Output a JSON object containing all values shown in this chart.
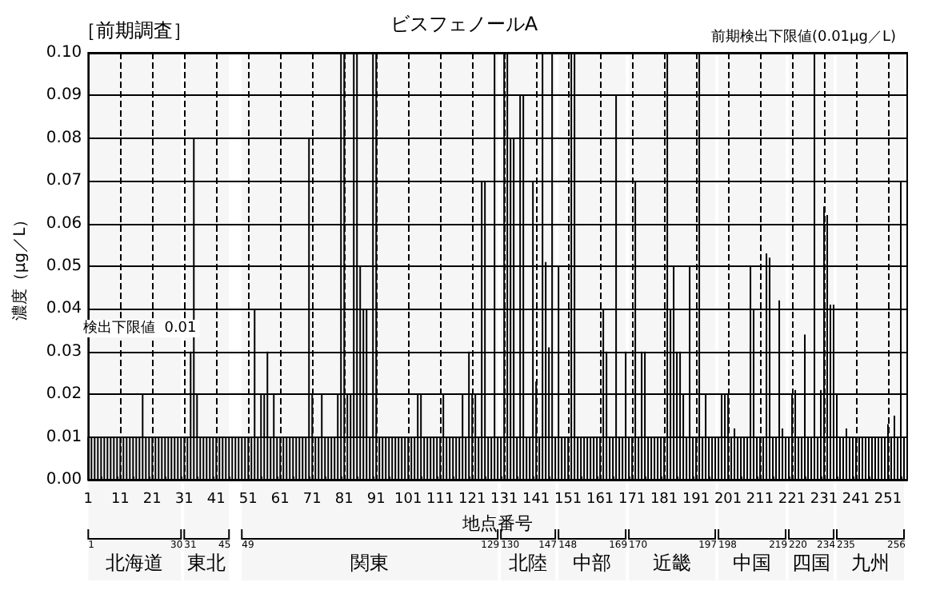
{
  "chart_data": {
    "type": "bar",
    "title": "ビスフェノールA",
    "xlabel": "地点番号",
    "ylabel": "濃度（μg／L）",
    "annotations": [
      "［前期調査］",
      "前期検出下限値(0.01μg／L)",
      "検出下限値  0.01",
      "1",
      "30",
      "31",
      "45",
      "49",
      "129",
      "130",
      "147",
      "148",
      "169",
      "170",
      "197",
      "198",
      "219",
      "220",
      "234",
      "235",
      "256"
    ],
    "color": "#000000",
    "x": [
      1,
      2,
      3,
      4,
      5,
      6,
      7,
      8,
      9,
      10,
      11,
      12,
      13,
      14,
      15,
      16,
      17,
      18,
      19,
      20,
      21,
      22,
      23,
      24,
      25,
      26,
      27,
      28,
      29,
      30,
      31,
      32,
      33,
      34,
      35,
      36,
      37,
      38,
      39,
      40,
      41,
      42,
      43,
      44,
      45,
      46,
      47,
      48,
      49,
      50,
      51,
      52,
      53,
      54,
      55,
      56,
      57,
      58,
      59,
      60,
      61,
      62,
      63,
      64,
      65,
      66,
      67,
      68,
      69,
      70,
      71,
      72,
      73,
      74,
      75,
      76,
      77,
      78,
      79,
      80,
      81,
      82,
      83,
      84,
      85,
      86,
      87,
      88,
      89,
      90,
      91,
      92,
      93,
      94,
      95,
      96,
      97,
      98,
      99,
      100,
      101,
      102,
      103,
      104,
      105,
      106,
      107,
      108,
      109,
      110,
      111,
      112,
      113,
      114,
      115,
      116,
      117,
      118,
      119,
      120,
      121,
      122,
      123,
      124,
      125,
      126,
      127,
      128,
      129,
      130,
      131,
      132,
      133,
      134,
      135,
      136,
      137,
      138,
      139,
      140,
      141,
      142,
      143,
      144,
      145,
      146,
      147,
      148,
      149,
      150,
      151,
      152,
      153,
      154,
      155,
      156,
      157,
      158,
      159,
      160,
      161,
      162,
      163,
      164,
      165,
      166,
      167,
      168,
      169,
      170,
      171,
      172,
      173,
      174,
      175,
      176,
      177,
      178,
      179,
      180,
      181,
      182,
      183,
      184,
      185,
      186,
      187,
      188,
      189,
      190,
      191,
      192,
      193,
      194,
      195,
      196,
      197,
      198,
      199,
      200,
      201,
      202,
      203,
      204,
      205,
      206,
      207,
      208,
      209,
      210,
      211,
      212,
      213,
      214,
      215,
      216,
      217,
      218,
      219,
      220,
      221,
      222,
      223,
      224,
      225,
      226,
      227,
      228,
      229,
      230,
      231,
      232,
      233,
      234,
      235,
      236,
      237,
      238,
      239,
      240,
      241,
      242,
      243,
      244,
      245,
      246,
      247,
      248,
      249,
      250,
      251,
      252,
      253,
      254,
      255,
      256
    ],
    "values": [
      0.01,
      0.01,
      0.01,
      0.01,
      0.01,
      0.01,
      0.01,
      0.01,
      0.01,
      0.01,
      0.01,
      0.01,
      0.01,
      0.01,
      0.01,
      0.01,
      0.01,
      0.02,
      0.01,
      0.01,
      0.01,
      0.01,
      0.01,
      0.01,
      0.01,
      0.01,
      0.01,
      0.01,
      0.01,
      0.01,
      0.01,
      0.01,
      0.03,
      0.08,
      0.02,
      0.01,
      0.01,
      0.01,
      0.01,
      0.01,
      0.01,
      0.01,
      0.01,
      0.01,
      0.01,
      0.01,
      0.01,
      0.01,
      0.01,
      0.01,
      0.01,
      0.01,
      0.04,
      0.01,
      0.02,
      0.02,
      0.03,
      0.01,
      0.02,
      0.01,
      0.01,
      0.01,
      0.01,
      0.01,
      0.01,
      0.01,
      0.01,
      0.01,
      0.01,
      0.08,
      0.02,
      0.01,
      0.01,
      0.02,
      0.01,
      0.01,
      0.01,
      0.01,
      0.02,
      0.1,
      0.1,
      0.02,
      0.02,
      0.1,
      0.1,
      0.05,
      0.04,
      0.04,
      0.01,
      0.1,
      0.1,
      0.01,
      0.01,
      0.01,
      0.01,
      0.01,
      0.01,
      0.01,
      0.01,
      0.01,
      0.01,
      0.01,
      0.01,
      0.02,
      0.02,
      0.01,
      0.01,
      0.01,
      0.01,
      0.01,
      0.01,
      0.02,
      0.01,
      0.01,
      0.01,
      0.01,
      0.01,
      0.02,
      0.01,
      0.03,
      0.02,
      0.02,
      0.01,
      0.07,
      0.07,
      0.01,
      0.01,
      0.1,
      0.01,
      0.01,
      0.1,
      0.1,
      0.08,
      0.08,
      0.01,
      0.09,
      0.09,
      0.01,
      0.01,
      0.07,
      0.023,
      0.01,
      0.1,
      0.051,
      0.031,
      0.1,
      0.01,
      0.05,
      0.01,
      0.01,
      0.01,
      0.1,
      0.1,
      0.01,
      0.01,
      0.01,
      0.01,
      0.01,
      0.01,
      0.01,
      0.01,
      0.04,
      0.03,
      0.01,
      0.01,
      0.09,
      0.01,
      0.01,
      0.03,
      0.01,
      0.01,
      0.07,
      0.01,
      0.03,
      0.03,
      0.01,
      0.01,
      0.01,
      0.01,
      0.01,
      0.01,
      0.1,
      0.04,
      0.05,
      0.03,
      0.03,
      0.02,
      0.01,
      0.05,
      0.01,
      0.01,
      0.1,
      0.01,
      0.02,
      0.01,
      0.01,
      0.01,
      0.01,
      0.02,
      0.02,
      0.02,
      0.01,
      0.012,
      0.01,
      0.01,
      0.01,
      0.01,
      0.05,
      0.04,
      0.01,
      0.01,
      0.01,
      0.053,
      0.052,
      0.01,
      0.01,
      0.042,
      0.012,
      0.01,
      0.01,
      0.02,
      0.021,
      0.01,
      0.01,
      0.034,
      0.01,
      0.01,
      0.1,
      0.01,
      0.021,
      0.064,
      0.062,
      0.041,
      0.041,
      0.02,
      0.01,
      0.01,
      0.012,
      0.01,
      0.01,
      0.01,
      0.01,
      0.01,
      0.01,
      0.01,
      0.01,
      0.01,
      0.01,
      0.01,
      0.01,
      0.013,
      0.01,
      0.015,
      0.01,
      0.07,
      0.01
    ],
    "xlim": [
      1,
      257
    ],
    "xticks": [
      1,
      11,
      21,
      31,
      41,
      51,
      61,
      71,
      81,
      91,
      101,
      111,
      121,
      131,
      141,
      151,
      161,
      171,
      181,
      191,
      201,
      211,
      221,
      231,
      241,
      251
    ],
    "ylim": [
      0,
      0.1
    ],
    "yticks": [
      {
        "value": 0,
        "label": "0.00"
      },
      0.01,
      0.02,
      0.03,
      0.04,
      0.05,
      0.06,
      0.07,
      0.08,
      0.09,
      {
        "value": 0.1,
        "label": "0.10"
      }
    ],
    "grid": true,
    "bands": [
      {
        "axis": "x",
        "from": 1,
        "to": 30,
        "label": "北海道",
        "color": "#f6f6f6"
      },
      {
        "axis": "x",
        "from": 31,
        "to": 45,
        "label": "東北",
        "color": "#f6f6f6"
      },
      {
        "axis": "x",
        "from": 49,
        "to": 129,
        "label": "関東",
        "color": "#f6f6f6"
      },
      {
        "axis": "x",
        "from": 130,
        "to": 147,
        "label": "北陸",
        "color": "#f6f6f6"
      },
      {
        "axis": "x",
        "from": 148,
        "to": 169,
        "label": "中部",
        "color": "#f6f6f6"
      },
      {
        "axis": "x",
        "from": 170,
        "to": 197,
        "label": "近畿",
        "color": "#f6f6f6"
      },
      {
        "axis": "x",
        "from": 198,
        "to": 219,
        "label": "中国",
        "color": "#f6f6f6"
      },
      {
        "axis": "x",
        "from": 220,
        "to": 234,
        "label": "四国",
        "color": "#f6f6f6"
      },
      {
        "axis": "x",
        "from": 235,
        "to": 256,
        "label": "九州",
        "color": "#f6f6f6"
      }
    ]
  }
}
